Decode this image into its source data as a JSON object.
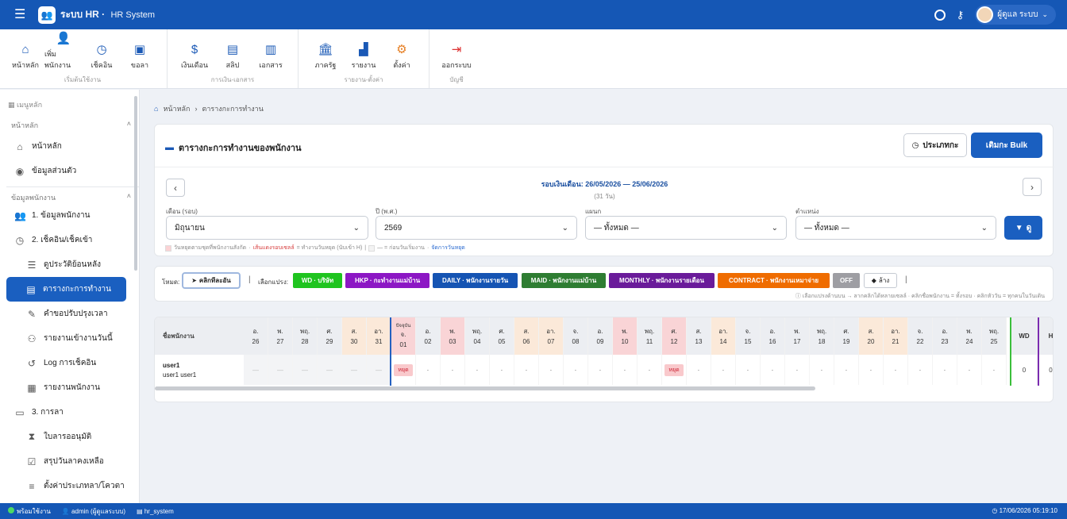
{
  "topbar": {
    "app_name": "ระบบ HR",
    "app_sub": "HR System",
    "user_name": "ผู้ดูแล ระบบ"
  },
  "ribbon": {
    "groups": [
      {
        "title": "เริ่มต้นใช้งาน",
        "items": [
          {
            "label": "หน้าหลัก",
            "icon": "home-icon"
          },
          {
            "label": "เพิ่มพนักงาน",
            "icon": "user-plus-icon"
          },
          {
            "label": "เช็คอิน",
            "icon": "clock-icon"
          },
          {
            "label": "ขอลา",
            "icon": "calendar-plus-icon"
          }
        ]
      },
      {
        "title": "การเงิน-เอกสาร",
        "items": [
          {
            "label": "เงินเดือน",
            "icon": "payroll-icon"
          },
          {
            "label": "สลิป",
            "icon": "slip-icon"
          },
          {
            "label": "เอกสาร",
            "icon": "document-icon"
          }
        ]
      },
      {
        "title": "รายงาน-ตั้งค่า",
        "items": [
          {
            "label": "ภาครัฐ",
            "icon": "government-icon"
          },
          {
            "label": "รายงาน",
            "icon": "bar-chart-icon"
          },
          {
            "label": "ตั้งค่า",
            "icon": "gear-icon"
          }
        ]
      },
      {
        "title": "บัญชี",
        "items": [
          {
            "label": "ออกระบบ",
            "icon": "logout-icon"
          }
        ]
      }
    ]
  },
  "sidebar": {
    "menu_title": "เมนูหลัก",
    "sec_main": "หน้าหลัก",
    "home": "หน้าหลัก",
    "profile": "ข้อมูลส่วนตัว",
    "sec_emp": "ข้อมูลพนักงาน",
    "emp_data": "1. ข้อมูลพนักงาน",
    "checkin": "2. เช็คอิน/เช็คเข้า",
    "history": "ดูประวัติย้อนหลัง",
    "schedule": "ตารางกะการทำงาน",
    "adjust": "คำขอปรับปรุงเวลา",
    "daily_report": "รายงานเข้างานวันนี้",
    "log": "Log การเช็คอิน",
    "emp_report": "รายงานพนักงาน",
    "leave": "3. การลา",
    "approve": "ใบลารออนุมัติ",
    "summary": "สรุปวันลาคงเหลือ",
    "leave_settings": "ตั้งค่าประเภทลา/โควตา"
  },
  "breadcrumb": {
    "home": "หน้าหลัก",
    "sep": "›",
    "current": "ตารางกะการทำงาน"
  },
  "schedule_card": {
    "title": "ตารางกะการทำงานของพนักงาน",
    "btn_type": "ประเภทกะ",
    "btn_bulk": "เติมกะ Bulk",
    "period": "รอบเงินเดือน: 26/05/2026 — 25/06/2026",
    "period_days": "(31 วัน)",
    "month_label": "เดือน (รอบ)",
    "month_value": "มิถุนายน",
    "year_label": "ปี (พ.ศ.)",
    "year_value": "2569",
    "dept_label": "แผนก",
    "dept_value": "— ทั้งหมด —",
    "pos_label": "ตำแหน่ง",
    "pos_value": "— ทั้งหมด —",
    "btn_view": "ดู",
    "legend_1": "วันหยุดตามชุดที่พนักงานสังกัด",
    "legend_2": "เส้นแดงรอบเซลล์",
    "legend_3": "= ทำงานวันหยุด (นับเข้า H)",
    "legend_4": "— = ก่อนวันเริ่มงาน",
    "legend_5": "จัดการวันหยุด"
  },
  "mode_card": {
    "mode_label": "โหมด:",
    "mode_btn": "คลิกทีละอัน",
    "sep": "|",
    "type_label": "เลือกแปรง:",
    "chips": [
      {
        "label": "WD · บริษัท",
        "color": "#1fc41f"
      },
      {
        "label": "HKP · กะทำงานแม่บ้าน",
        "color": "#8c17c4"
      },
      {
        "label": "DAILY · พนักงานรายวัน",
        "color": "#1554b3"
      },
      {
        "label": "MAID · พนักงานแม่บ้าน",
        "color": "#2e7d32"
      },
      {
        "label": "MONTHLY · พนักงานรายเดือน",
        "color": "#6a1b9a"
      },
      {
        "label": "CONTRACT · พนักงานเหมาจ่าย",
        "color": "#ef6c00"
      },
      {
        "label": "OFF",
        "color": "#9e9ea3"
      }
    ],
    "clear": "ล้าง",
    "hint": "ⓘ เลือกแปรงด้านบน → ลากคลิกได้หลายเซลล์ · คลิกชื่อพนักงาน = ทั้งรอบ · คลิกหัววัน = ทุกคนในวันเดิน"
  },
  "table": {
    "name_header": "ชื่อพนักงาน",
    "today_label": "ปัจจุบัน",
    "days": [
      {
        "dow": "อ.",
        "d": "26",
        "t": "n"
      },
      {
        "dow": "พ.",
        "d": "27",
        "t": "n"
      },
      {
        "dow": "พฤ.",
        "d": "28",
        "t": "n"
      },
      {
        "dow": "ศ.",
        "d": "29",
        "t": "n"
      },
      {
        "dow": "ส.",
        "d": "30",
        "t": "w"
      },
      {
        "dow": "อา.",
        "d": "31",
        "t": "w"
      },
      {
        "dow": "จ.",
        "d": "01",
        "t": "h"
      },
      {
        "dow": "อ.",
        "d": "02",
        "t": "n"
      },
      {
        "dow": "พ.",
        "d": "03",
        "t": "h"
      },
      {
        "dow": "พฤ.",
        "d": "04",
        "t": "n"
      },
      {
        "dow": "ศ.",
        "d": "05",
        "t": "n"
      },
      {
        "dow": "ส.",
        "d": "06",
        "t": "w"
      },
      {
        "dow": "อา.",
        "d": "07",
        "t": "w"
      },
      {
        "dow": "จ.",
        "d": "08",
        "t": "n"
      },
      {
        "dow": "อ.",
        "d": "09",
        "t": "n"
      },
      {
        "dow": "พ.",
        "d": "10",
        "t": "h"
      },
      {
        "dow": "พฤ.",
        "d": "11",
        "t": "n"
      },
      {
        "dow": "ศ.",
        "d": "12",
        "t": "h"
      },
      {
        "dow": "ส.",
        "d": "13",
        "t": "n"
      },
      {
        "dow": "อา.",
        "d": "14",
        "t": "w"
      },
      {
        "dow": "จ.",
        "d": "15",
        "t": "n"
      },
      {
        "dow": "อ.",
        "d": "16",
        "t": "n"
      },
      {
        "dow": "พ.",
        "d": "17",
        "t": "n"
      },
      {
        "dow": "พฤ.",
        "d": "18",
        "t": "n"
      },
      {
        "dow": "ศ.",
        "d": "19",
        "t": "n"
      },
      {
        "dow": "ส.",
        "d": "20",
        "t": "w"
      },
      {
        "dow": "อา.",
        "d": "21",
        "t": "w"
      },
      {
        "dow": "จ.",
        "d": "22",
        "t": "n"
      },
      {
        "dow": "อ.",
        "d": "23",
        "t": "n"
      },
      {
        "dow": "พ.",
        "d": "24",
        "t": "n"
      },
      {
        "dow": "พฤ.",
        "d": "25",
        "t": "n"
      }
    ],
    "row": {
      "user": "user1",
      "fullname": "user1 user1",
      "cells": [
        "—",
        "—",
        "—",
        "—",
        "—",
        "—",
        "หยุด",
        "·",
        "·",
        "·",
        "·",
        "·",
        "·",
        "·",
        "·",
        "·",
        "·",
        "หยุด",
        "·",
        "·",
        "·",
        "·",
        "·",
        "·",
        "·",
        "·",
        "·",
        "·",
        "·",
        "·",
        "·"
      ],
      "wd": "0",
      "h": "0"
    },
    "wd_header": "WD",
    "h_header": "H"
  },
  "statusbar": {
    "status": "พร้อมใช้งาน",
    "user": "admin (ผู้ดูแลระบบ)",
    "db": "hr_system",
    "datetime": "17/06/2026 05:19:10"
  }
}
